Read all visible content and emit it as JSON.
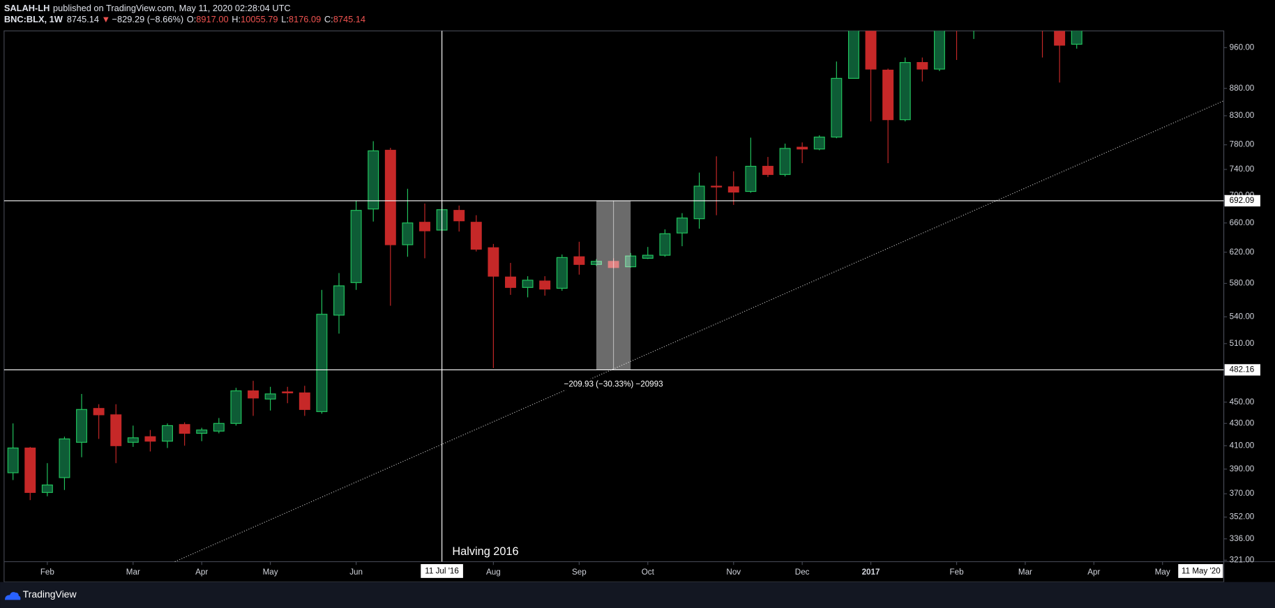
{
  "header": {
    "publisher": "SALAH-LH",
    "published": "published on TradingView.com, May 11, 2020 02:28:04 UTC",
    "symbol": "BNC:BLX, 1W",
    "last": "8745.14",
    "change": "−829.29 (−8.66%)",
    "ohlc": [
      {
        "label": "O:",
        "value": "8917.00"
      },
      {
        "label": "H:",
        "value": "10055.79"
      },
      {
        "label": "L:",
        "value": "8176.09"
      },
      {
        "label": "C:",
        "value": "8745.14"
      }
    ]
  },
  "footer": {
    "brand": "TradingView"
  },
  "chart_data": {
    "type": "candlestick",
    "log_scale": true,
    "grid": false,
    "up_color": "#0e5c36",
    "up_border": "#22c55e",
    "down_color": "#c62828",
    "categories": [
      null,
      null,
      null,
      null,
      null,
      null,
      null,
      null,
      null,
      null,
      null,
      null,
      null,
      null,
      null,
      null,
      null,
      null,
      null,
      null,
      null,
      null,
      null,
      null,
      null,
      null,
      null,
      null,
      null,
      null,
      null,
      null,
      null,
      null,
      null,
      null,
      null,
      null,
      null,
      null,
      null,
      null,
      null,
      null,
      null,
      null,
      null,
      null,
      null,
      null,
      null,
      null,
      null,
      null,
      null,
      null,
      null,
      null,
      null,
      null,
      null,
      null,
      null
    ],
    "open": [
      387,
      408,
      371,
      383,
      413,
      444,
      438,
      413,
      418,
      414,
      429,
      421,
      423,
      430,
      461,
      453,
      460,
      459,
      441,
      542,
      581,
      680,
      771,
      630,
      661,
      650,
      678,
      661,
      626,
      588,
      575,
      583,
      574,
      614,
      604,
      608,
      601,
      612,
      616,
      646,
      666,
      714,
      713,
      706,
      745,
      732,
      776,
      773,
      793,
      899,
      1025,
      915,
      823,
      930,
      917,
      1040,
      1000,
      null,
      null,
      null,
      1020,
      994,
      967
    ],
    "high": [
      430,
      409,
      395,
      418,
      458,
      448,
      448,
      428,
      424,
      430,
      431,
      426,
      435,
      464,
      471,
      465,
      465,
      466,
      572,
      593,
      692,
      786,
      775,
      710,
      688,
      688,
      685,
      671,
      631,
      606,
      589,
      589,
      617,
      634,
      611,
      612,
      619,
      627,
      651,
      674,
      735,
      761,
      737,
      792,
      760,
      782,
      784,
      796,
      932,
      1043,
      1043,
      918,
      940,
      940,
      1033,
      1045,
      1040,
      null,
      null,
      null,
      1035,
      1008,
      1008
    ],
    "low": [
      381,
      365,
      368,
      373,
      400,
      416,
      395,
      409,
      405,
      408,
      410,
      414,
      421,
      428,
      437,
      442,
      449,
      437,
      439,
      521,
      572,
      662,
      553,
      614,
      612,
      649,
      648,
      621,
      484,
      566,
      563,
      565,
      571,
      591,
      602,
      599,
      600,
      611,
      614,
      628,
      652,
      671,
      686,
      704,
      728,
      729,
      750,
      771,
      791,
      899,
      820,
      750,
      820,
      893,
      913,
      935,
      978,
      null,
      null,
      null,
      940,
      891,
      958
    ],
    "close": [
      408,
      371,
      377,
      416,
      443,
      438,
      410,
      417,
      414,
      428,
      421,
      424,
      430,
      461,
      454,
      458,
      459,
      443,
      543,
      577,
      678,
      770,
      630,
      660,
      649,
      679,
      663,
      624,
      589,
      575,
      584,
      573,
      613,
      604,
      608,
      600,
      615,
      616,
      645,
      667,
      714,
      713,
      705,
      745,
      732,
      774,
      773,
      793,
      899,
      1025,
      917,
      823,
      930,
      917,
      1011,
      1010,
      1030,
      null,
      null,
      null,
      1000,
      965,
      996
    ],
    "xlim": [
      -0.52,
      70.57
    ],
    "xticks": [
      {
        "value": 2,
        "label": "Feb"
      },
      {
        "value": 7,
        "label": "Mar"
      },
      {
        "value": 11,
        "label": "Apr"
      },
      {
        "value": 15,
        "label": "May"
      },
      {
        "value": 20,
        "label": "Jun"
      },
      {
        "value": 28,
        "label": "Aug"
      },
      {
        "value": 33,
        "label": "Sep"
      },
      {
        "value": 37,
        "label": "Oct"
      },
      {
        "value": 42,
        "label": "Nov"
      },
      {
        "value": 46,
        "label": "Dec"
      },
      {
        "value": 50,
        "label": "2017"
      },
      {
        "value": 55,
        "label": "Feb"
      },
      {
        "value": 59,
        "label": "Mar"
      },
      {
        "value": 63,
        "label": "Apr"
      },
      {
        "value": 67,
        "label": "May"
      }
    ],
    "ylim": [
      320,
      995
    ],
    "yticks": [
      {
        "value": 321,
        "label": "321.00"
      },
      {
        "value": 336,
        "label": "336.00"
      },
      {
        "value": 352,
        "label": "352.00"
      },
      {
        "value": 370,
        "label": "370.00"
      },
      {
        "value": 390,
        "label": "390.00"
      },
      {
        "value": 410,
        "label": "410.00"
      },
      {
        "value": 430,
        "label": "430.00"
      },
      {
        "value": 450,
        "label": "450.00"
      },
      {
        "value": 510,
        "label": "510.00"
      },
      {
        "value": 540,
        "label": "540.00"
      },
      {
        "value": 580,
        "label": "580.00"
      },
      {
        "value": 620,
        "label": "620.00"
      },
      {
        "value": 660,
        "label": "660.00"
      },
      {
        "value": 700,
        "label": "700.00"
      },
      {
        "value": 740,
        "label": "740.00"
      },
      {
        "value": 780,
        "label": "780.00"
      },
      {
        "value": 830,
        "label": "830.00"
      },
      {
        "value": 880,
        "label": "880.00"
      },
      {
        "value": 960,
        "label": "960.00"
      }
    ],
    "horizontal_lines": [
      692.09,
      482.16
    ],
    "crosshair": {
      "category": 25,
      "label": "11 Jul '16"
    },
    "axis_end_label": "11 May '20",
    "measure": {
      "from": 34,
      "to": 36,
      "label": "−209.93 (−30.33%) −20993"
    },
    "annotation": "Halving 2016"
  }
}
